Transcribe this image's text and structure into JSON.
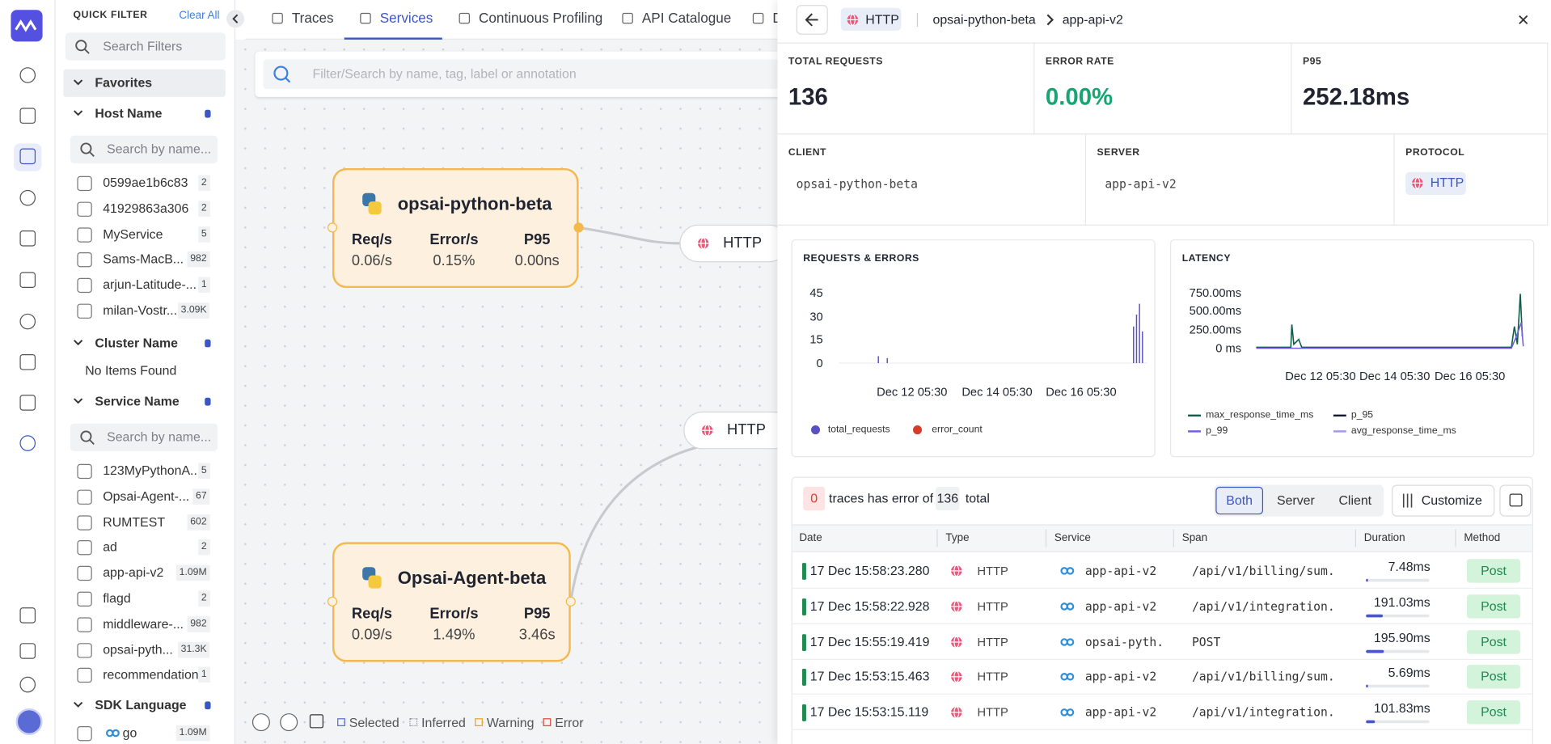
{
  "filter": {
    "title": "QUICK FILTER",
    "clear": "Clear All",
    "search_placeholder": "Search Filters",
    "favorites": "Favorites",
    "host": {
      "name": "Host Name",
      "placeholder": "Search by name...",
      "items": [
        {
          "label": "0599ae1b6c83",
          "count": "2"
        },
        {
          "label": "41929863a306",
          "count": "2"
        },
        {
          "label": "MyService",
          "count": "5"
        },
        {
          "label": "Sams-MacB...",
          "count": "982"
        },
        {
          "label": "arjun-Latitude-...",
          "count": "1"
        },
        {
          "label": "milan-Vostr...",
          "count": "3.09K"
        }
      ]
    },
    "cluster": {
      "name": "Cluster Name",
      "empty": "No Items Found"
    },
    "service": {
      "name": "Service Name",
      "placeholder": "Search by name...",
      "items": [
        {
          "label": "123MyPythonA...",
          "count": "5"
        },
        {
          "label": "Opsai-Agent-...",
          "count": "67"
        },
        {
          "label": "RUMTEST",
          "count": "602"
        },
        {
          "label": "ad",
          "count": "2"
        },
        {
          "label": "app-api-v2",
          "count": "1.09M"
        },
        {
          "label": "flagd",
          "count": "2"
        },
        {
          "label": "middleware-...",
          "count": "982"
        },
        {
          "label": "opsai-pyth...",
          "count": "31.3K"
        },
        {
          "label": "recommendation",
          "count": "1"
        }
      ]
    },
    "sdk": {
      "name": "SDK Language",
      "items": [
        {
          "label": "go",
          "count": "1.09M"
        }
      ]
    }
  },
  "tabs": [
    "Traces",
    "Services",
    "Continuous Profiling",
    "API Catalogue",
    "D"
  ],
  "map": {
    "search_placeholder": "Filter/Search by name, tag, label or annotation",
    "nodes": [
      {
        "name": "opsai-python-beta",
        "metrics": [
          {
            "label": "Req/s",
            "value": "0.06/s"
          },
          {
            "label": "Error/s",
            "value": "0.15%"
          },
          {
            "label": "P95",
            "value": "0.00ns"
          }
        ]
      },
      {
        "name": "Opsai-Agent-beta",
        "metrics": [
          {
            "label": "Req/s",
            "value": "0.09/s"
          },
          {
            "label": "Error/s",
            "value": "1.49%"
          },
          {
            "label": "P95",
            "value": "3.46s"
          }
        ]
      }
    ],
    "edges": [
      "HTTP",
      "HTTP"
    ],
    "legend": [
      "Selected",
      "Inferred",
      "Warning",
      "Error"
    ]
  },
  "panel": {
    "badge": "HTTP",
    "breadcrumb": [
      "opsai-python-beta",
      "app-api-v2"
    ],
    "stats": [
      {
        "label": "TOTAL REQUESTS",
        "value": "136"
      },
      {
        "label": "ERROR RATE",
        "value": "0.00%"
      },
      {
        "label": "P95",
        "value": "252.18ms"
      }
    ],
    "info": [
      {
        "label": "CLIENT",
        "value": "opsai-python-beta"
      },
      {
        "label": "SERVER",
        "value": "app-api-v2"
      },
      {
        "label": "PROTOCOL",
        "value": "HTTP"
      }
    ],
    "requests_chart": {
      "title": "REQUESTS & ERRORS",
      "yticks": [
        "45",
        "30",
        "15",
        "0"
      ],
      "xticks": [
        "Dec 12 05:30",
        "Dec 14 05:30",
        "Dec 16 05:30"
      ],
      "legend": [
        "total_requests",
        "error_count"
      ]
    },
    "latency_chart": {
      "title": "LATENCY",
      "yticks": [
        "750.00ms",
        "500.00ms",
        "250.00ms",
        "0 ms"
      ],
      "xticks": [
        "Dec 12 05:30",
        "Dec 14 05:30",
        "Dec 16 05:30"
      ],
      "legend": [
        "max_response_time_ms",
        "p_95",
        "p_99",
        "avg_response_time_ms"
      ]
    },
    "traces": {
      "error_count": "0",
      "text": "traces has error of",
      "total": "136",
      "total_text": "total",
      "filters": [
        "Both",
        "Server",
        "Client"
      ],
      "customize": "Customize",
      "columns": [
        "Date",
        "Type",
        "Service",
        "Span",
        "Duration",
        "Method"
      ],
      "rows": [
        [
          "17 Dec 15:58:23.280",
          "HTTP",
          "app-api-v2",
          "/api/v1/billing/sum...",
          "7.48ms",
          "Post"
        ],
        [
          "17 Dec 15:58:22.928",
          "HTTP",
          "app-api-v2",
          "/api/v1/integration...",
          "191.03ms",
          "Post"
        ],
        [
          "17 Dec 15:55:19.419",
          "HTTP",
          "opsai-pyth...",
          "POST",
          "195.90ms",
          "Post"
        ],
        [
          "17 Dec 15:53:15.463",
          "HTTP",
          "app-api-v2",
          "/api/v1/billing/sum...",
          "5.69ms",
          "Post"
        ],
        [
          "17 Dec 15:53:15.119",
          "HTTP",
          "app-api-v2",
          "/api/v1/integration...",
          "101.83ms",
          "Post"
        ]
      ]
    }
  }
}
